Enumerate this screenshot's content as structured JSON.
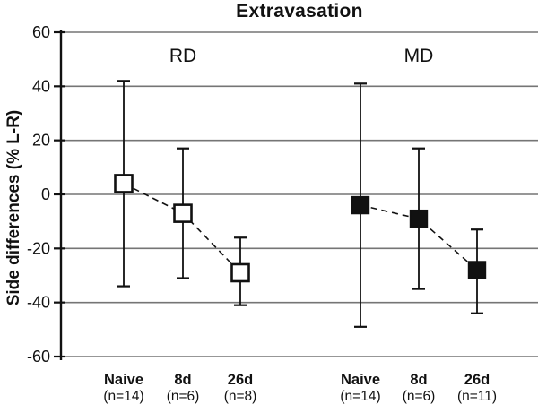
{
  "chart_data": {
    "type": "scatter",
    "subtype": "means-with-error-bars",
    "title": "Extravasation",
    "xlabel": "",
    "ylabel": "Side differences (% L-R)",
    "ylim": [
      -60,
      60
    ],
    "yticks": [
      60,
      40,
      20,
      0,
      -20,
      -40,
      -60
    ],
    "grid": true,
    "line_style": "dashed",
    "legend_position": "group-labels-above-plot",
    "groups": [
      {
        "label": "RD",
        "marker": "open-square",
        "categories": [
          "Naive",
          "8d",
          "26d"
        ],
        "n_labels": [
          "(n=14)",
          "(n=6)",
          "(n=8)"
        ],
        "means": [
          4,
          -7,
          -29
        ],
        "err_high": [
          42,
          17,
          -16
        ],
        "err_low": [
          -34,
          -31,
          -41
        ]
      },
      {
        "label": "MD",
        "marker": "filled-square",
        "categories": [
          "Naive",
          "8d",
          "26d"
        ],
        "n_labels": [
          "(n=14)",
          "(n=6)",
          "(n=11)"
        ],
        "means": [
          -4,
          -9,
          -28
        ],
        "err_high": [
          41,
          17,
          -13
        ],
        "err_low": [
          -49,
          -35,
          -44
        ]
      }
    ],
    "colors": {
      "axis": "#111111",
      "grid": "#757575",
      "marker_open_fill": "#ffffff",
      "marker_filled_fill": "#111111",
      "background": "#ffffff"
    }
  }
}
